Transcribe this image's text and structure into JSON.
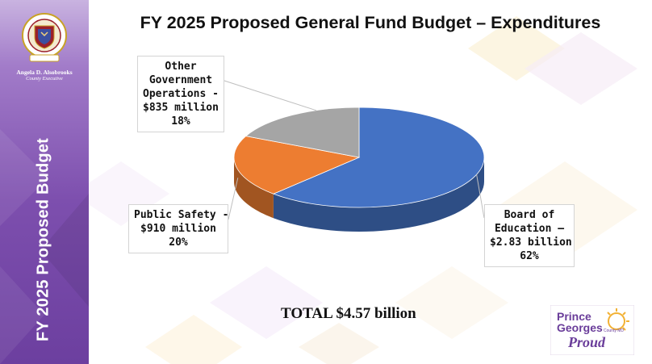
{
  "slide": {
    "title": "FY 2025 Proposed General Fund Budget – Expenditures",
    "sidebar_title": "FY 2025 Proposed Budget",
    "exec_name": "Angela D. Alsobrooks",
    "exec_title": "County Executive",
    "seal_text": "PRINCE GEORGE'S COUNTY MARYLAND",
    "total_label": "TOTAL $4.57 billion"
  },
  "logo": {
    "line1": "Prince",
    "line2": "Georges",
    "small": "County MD",
    "line3": "Proud"
  },
  "colors": {
    "board_of_education": "#4472c4",
    "public_safety": "#ed7d31",
    "other_government": "#a5a5a5",
    "sidebar_purple": "#7d4fae",
    "logo_purple": "#6a3d9a",
    "logo_gold": "#f2b134"
  },
  "chart_data": {
    "type": "pie",
    "style": "3d",
    "title": "FY 2025 Proposed General Fund Budget – Expenditures",
    "total": "TOTAL $4.57 billion",
    "series": [
      {
        "name": "Board of Education",
        "amount_billion": 2.83,
        "percent": 62,
        "color": "#4472c4",
        "label_lines": [
          "Board of",
          "Education –",
          "$2.83 billion",
          "62%"
        ]
      },
      {
        "name": "Public Safety",
        "amount_billion": 0.91,
        "percent": 20,
        "color": "#ed7d31",
        "label_lines": [
          "Public Safety -",
          "$910 million",
          "20%"
        ]
      },
      {
        "name": "Other Government Operations",
        "amount_billion": 0.835,
        "percent": 18,
        "color": "#a5a5a5",
        "label_lines": [
          "Other",
          "Government",
          "Operations -",
          "$835 million",
          "18%"
        ]
      }
    ]
  }
}
